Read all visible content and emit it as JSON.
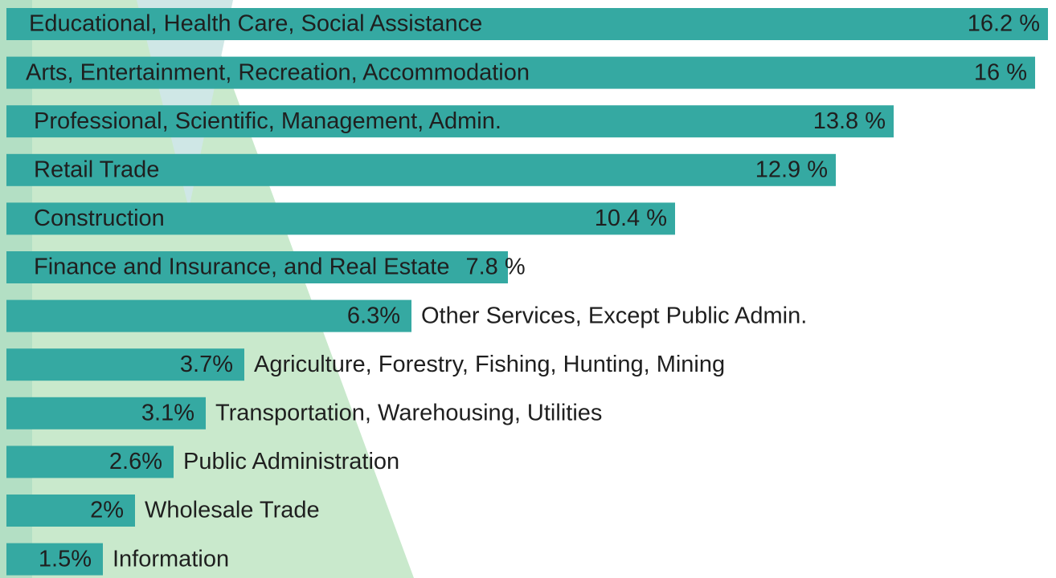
{
  "chart_data": {
    "type": "bar",
    "orientation": "horizontal",
    "color": "#35a9a2",
    "categories": [
      "Educational, Health Care, Social Assistance",
      "Arts, Entertainment, Recreation, Accommodation",
      "Professional, Scientific, Management, Admin.",
      "Retail Trade",
      "Construction",
      "Finance and Insurance, and Real Estate",
      "Other Services, Except Public Admin.",
      "Agriculture, Forestry, Fishing, Hunting, Mining",
      "Transportation, Warehousing, Utilities",
      "Public Administration",
      "Wholesale Trade",
      "Information"
    ],
    "values": [
      16.2,
      16,
      13.8,
      12.9,
      10.4,
      7.8,
      6.3,
      3.7,
      3.1,
      2.6,
      2,
      1.5
    ],
    "value_labels": [
      "16.2 %",
      "16 %",
      "13.8 %",
      "12.9 %",
      "10.4 %",
      "7.8 %",
      "6.3%",
      "3.7%",
      "3.1%",
      "2.6%",
      "2%",
      "1.5%"
    ]
  }
}
